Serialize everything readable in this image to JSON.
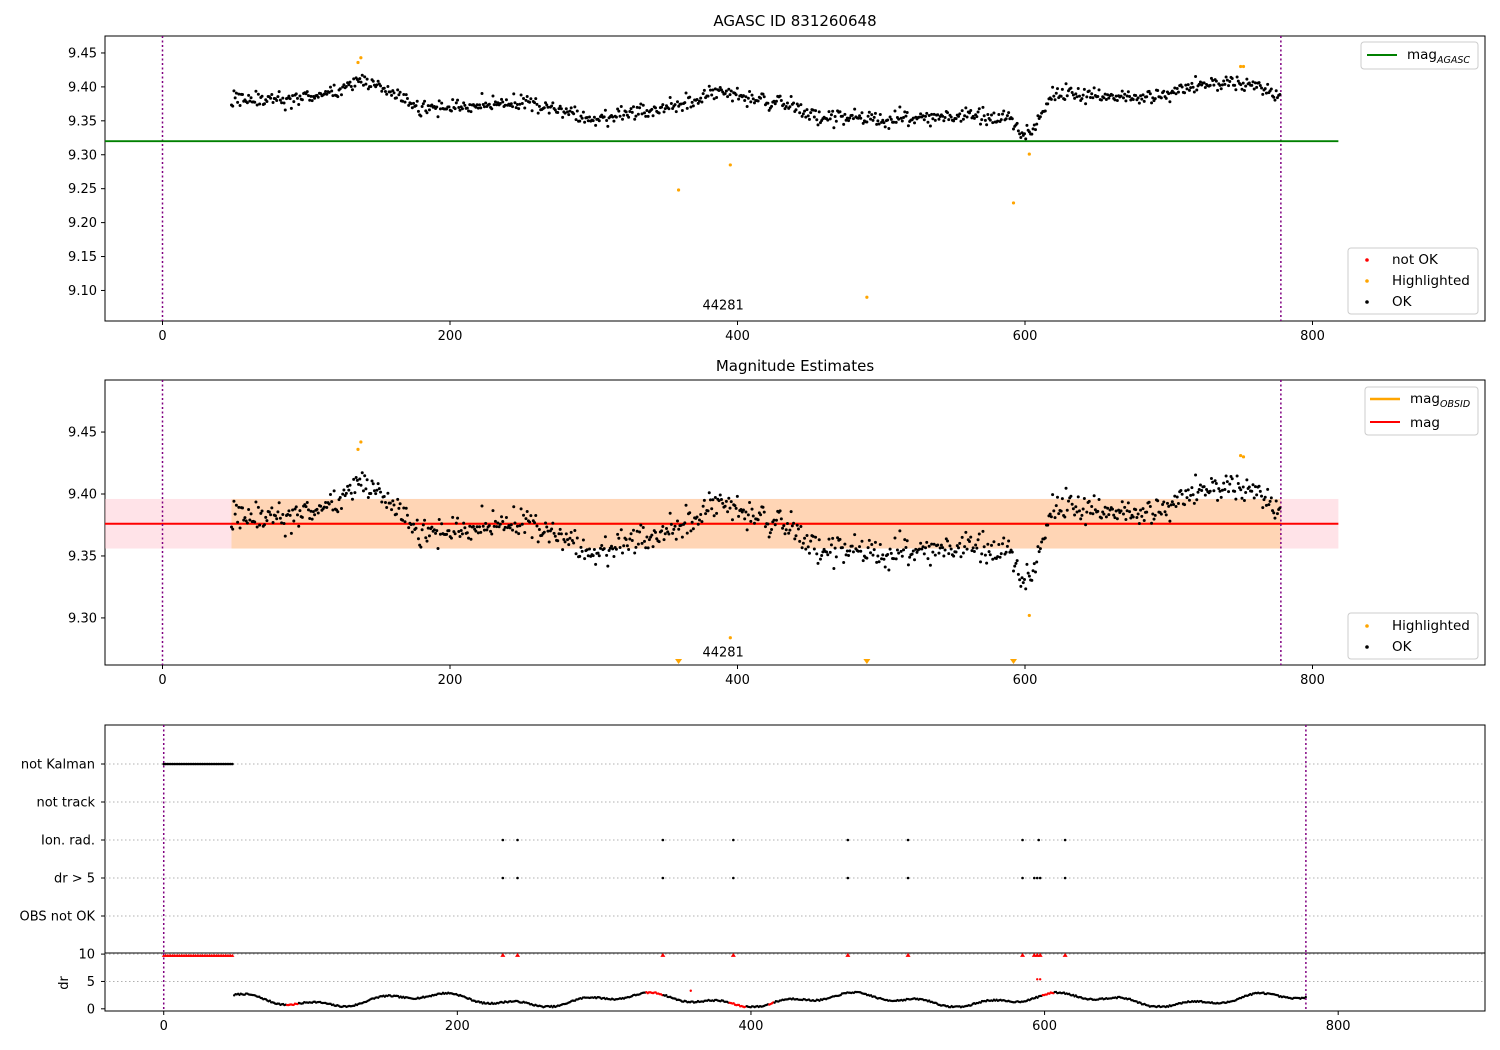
{
  "chart_data": [
    {
      "type": "scatter",
      "title": "AGASC ID 831260648",
      "xlim": [
        -40,
        920
      ],
      "ylim": [
        9.055,
        9.475
      ],
      "xticks": [
        0,
        200,
        400,
        600,
        800
      ],
      "yticks": [
        9.1,
        9.15,
        9.2,
        9.25,
        9.3,
        9.35,
        9.4,
        9.45
      ],
      "ytick_labels": [
        "9.10",
        "9.15",
        "9.20",
        "9.25",
        "9.30",
        "9.35",
        "9.40",
        "9.45"
      ],
      "annotation": {
        "text": "44281",
        "x": 390,
        "y": 9.072
      },
      "vlines": [
        0,
        778
      ],
      "lines": [
        {
          "name": "mag_AGASC",
          "legend_main": "mag",
          "legend_sub": "AGASC",
          "y": 9.32,
          "x_range": [
            -40,
            818
          ],
          "color": "#008000"
        }
      ],
      "legend_top": {
        "position": "top-right"
      },
      "legend_bottom": {
        "position": "bottom-right",
        "entries": [
          {
            "label": "not OK",
            "color": "#ff0000"
          },
          {
            "label": "Highlighted",
            "color": "#ffa500"
          },
          {
            "label": "OK",
            "color": "#000000"
          }
        ]
      },
      "highlighted_points": [
        [
          136,
          9.436
        ],
        [
          138,
          9.443
        ],
        [
          359,
          9.248
        ],
        [
          395,
          9.285
        ],
        [
          490,
          9.09
        ],
        [
          592,
          9.229
        ],
        [
          603,
          9.301
        ],
        [
          750,
          9.43
        ],
        [
          752,
          9.43
        ]
      ]
    },
    {
      "type": "scatter",
      "title": "Magnitude Estimates",
      "xlim": [
        -40,
        920
      ],
      "ylim": [
        9.262,
        9.492
      ],
      "xticks": [
        0,
        200,
        400,
        600,
        800
      ],
      "yticks": [
        9.3,
        9.35,
        9.4,
        9.45
      ],
      "ytick_labels": [
        "9.30",
        "9.35",
        "9.40",
        "9.45"
      ],
      "annotation": {
        "text": "44281",
        "x": 390,
        "y": 9.269
      },
      "vlines": [
        0,
        778
      ],
      "mag_line": {
        "name": "mag",
        "y": 9.376,
        "color": "#ff0000",
        "x_range": [
          -40,
          818
        ]
      },
      "mag_band": {
        "low": 9.356,
        "high": 9.396,
        "color": "#ffc0cb",
        "x_range": [
          -40,
          818
        ]
      },
      "mag_obsid": {
        "name": "mag_OBSID",
        "legend_main": "mag",
        "legend_sub": "OBSID",
        "y": 9.376,
        "low": 9.356,
        "high": 9.396,
        "color": "#ffa500",
        "x_range": [
          48,
          778
        ]
      },
      "legend_top": {
        "position": "top-right"
      },
      "legend_bottom": {
        "position": "bottom-right",
        "entries": [
          {
            "label": "Highlighted",
            "color": "#ffa500"
          },
          {
            "label": "OK",
            "color": "#000000"
          }
        ]
      },
      "highlighted_points": [
        [
          136,
          9.436
        ],
        [
          138,
          9.442
        ],
        [
          395,
          9.284
        ],
        [
          603,
          9.302
        ],
        [
          750,
          9.431
        ],
        [
          752,
          9.43
        ]
      ],
      "clipped_low_markers": [
        359,
        490,
        592
      ]
    },
    {
      "type": "scatter",
      "title": "",
      "xlim": [
        -40,
        900
      ],
      "xticks": [
        0,
        200,
        400,
        600,
        800
      ],
      "vlines": [
        0,
        778
      ],
      "categories": [
        "not Kalman",
        "not track",
        "Ion. rad.",
        "dr > 5",
        "OBS not OK"
      ],
      "flag_events": {
        "not Kalman": {
          "range": [
            0,
            48
          ]
        },
        "not track": {
          "points": []
        },
        "Ion. rad.": {
          "points": [
            231,
            241,
            340,
            388,
            466,
            507,
            585,
            596,
            614
          ]
        },
        "dr > 5": {
          "points": [
            231,
            241,
            340,
            388,
            466,
            507,
            585,
            593,
            595,
            597,
            614
          ]
        },
        "OBS not OK": {
          "points": []
        }
      },
      "dr_panel": {
        "ylabel": "dr",
        "ylim": [
          -0.4,
          10.2
        ],
        "yticks": [
          0,
          5,
          10
        ],
        "ytick_labels": [
          "0",
          "5",
          "10"
        ],
        "clipped_red_points": [
          231,
          241,
          340,
          388,
          466,
          507,
          585,
          593,
          595,
          597,
          614
        ],
        "red_segments": [
          [
            84,
            92
          ],
          [
            328,
            340
          ],
          [
            385,
            397
          ],
          [
            412,
            416
          ],
          [
            598,
            606
          ]
        ],
        "red_extra_points": [
          [
            359,
            3.3
          ],
          [
            595,
            5.4
          ],
          [
            597,
            5.4
          ]
        ]
      }
    }
  ]
}
